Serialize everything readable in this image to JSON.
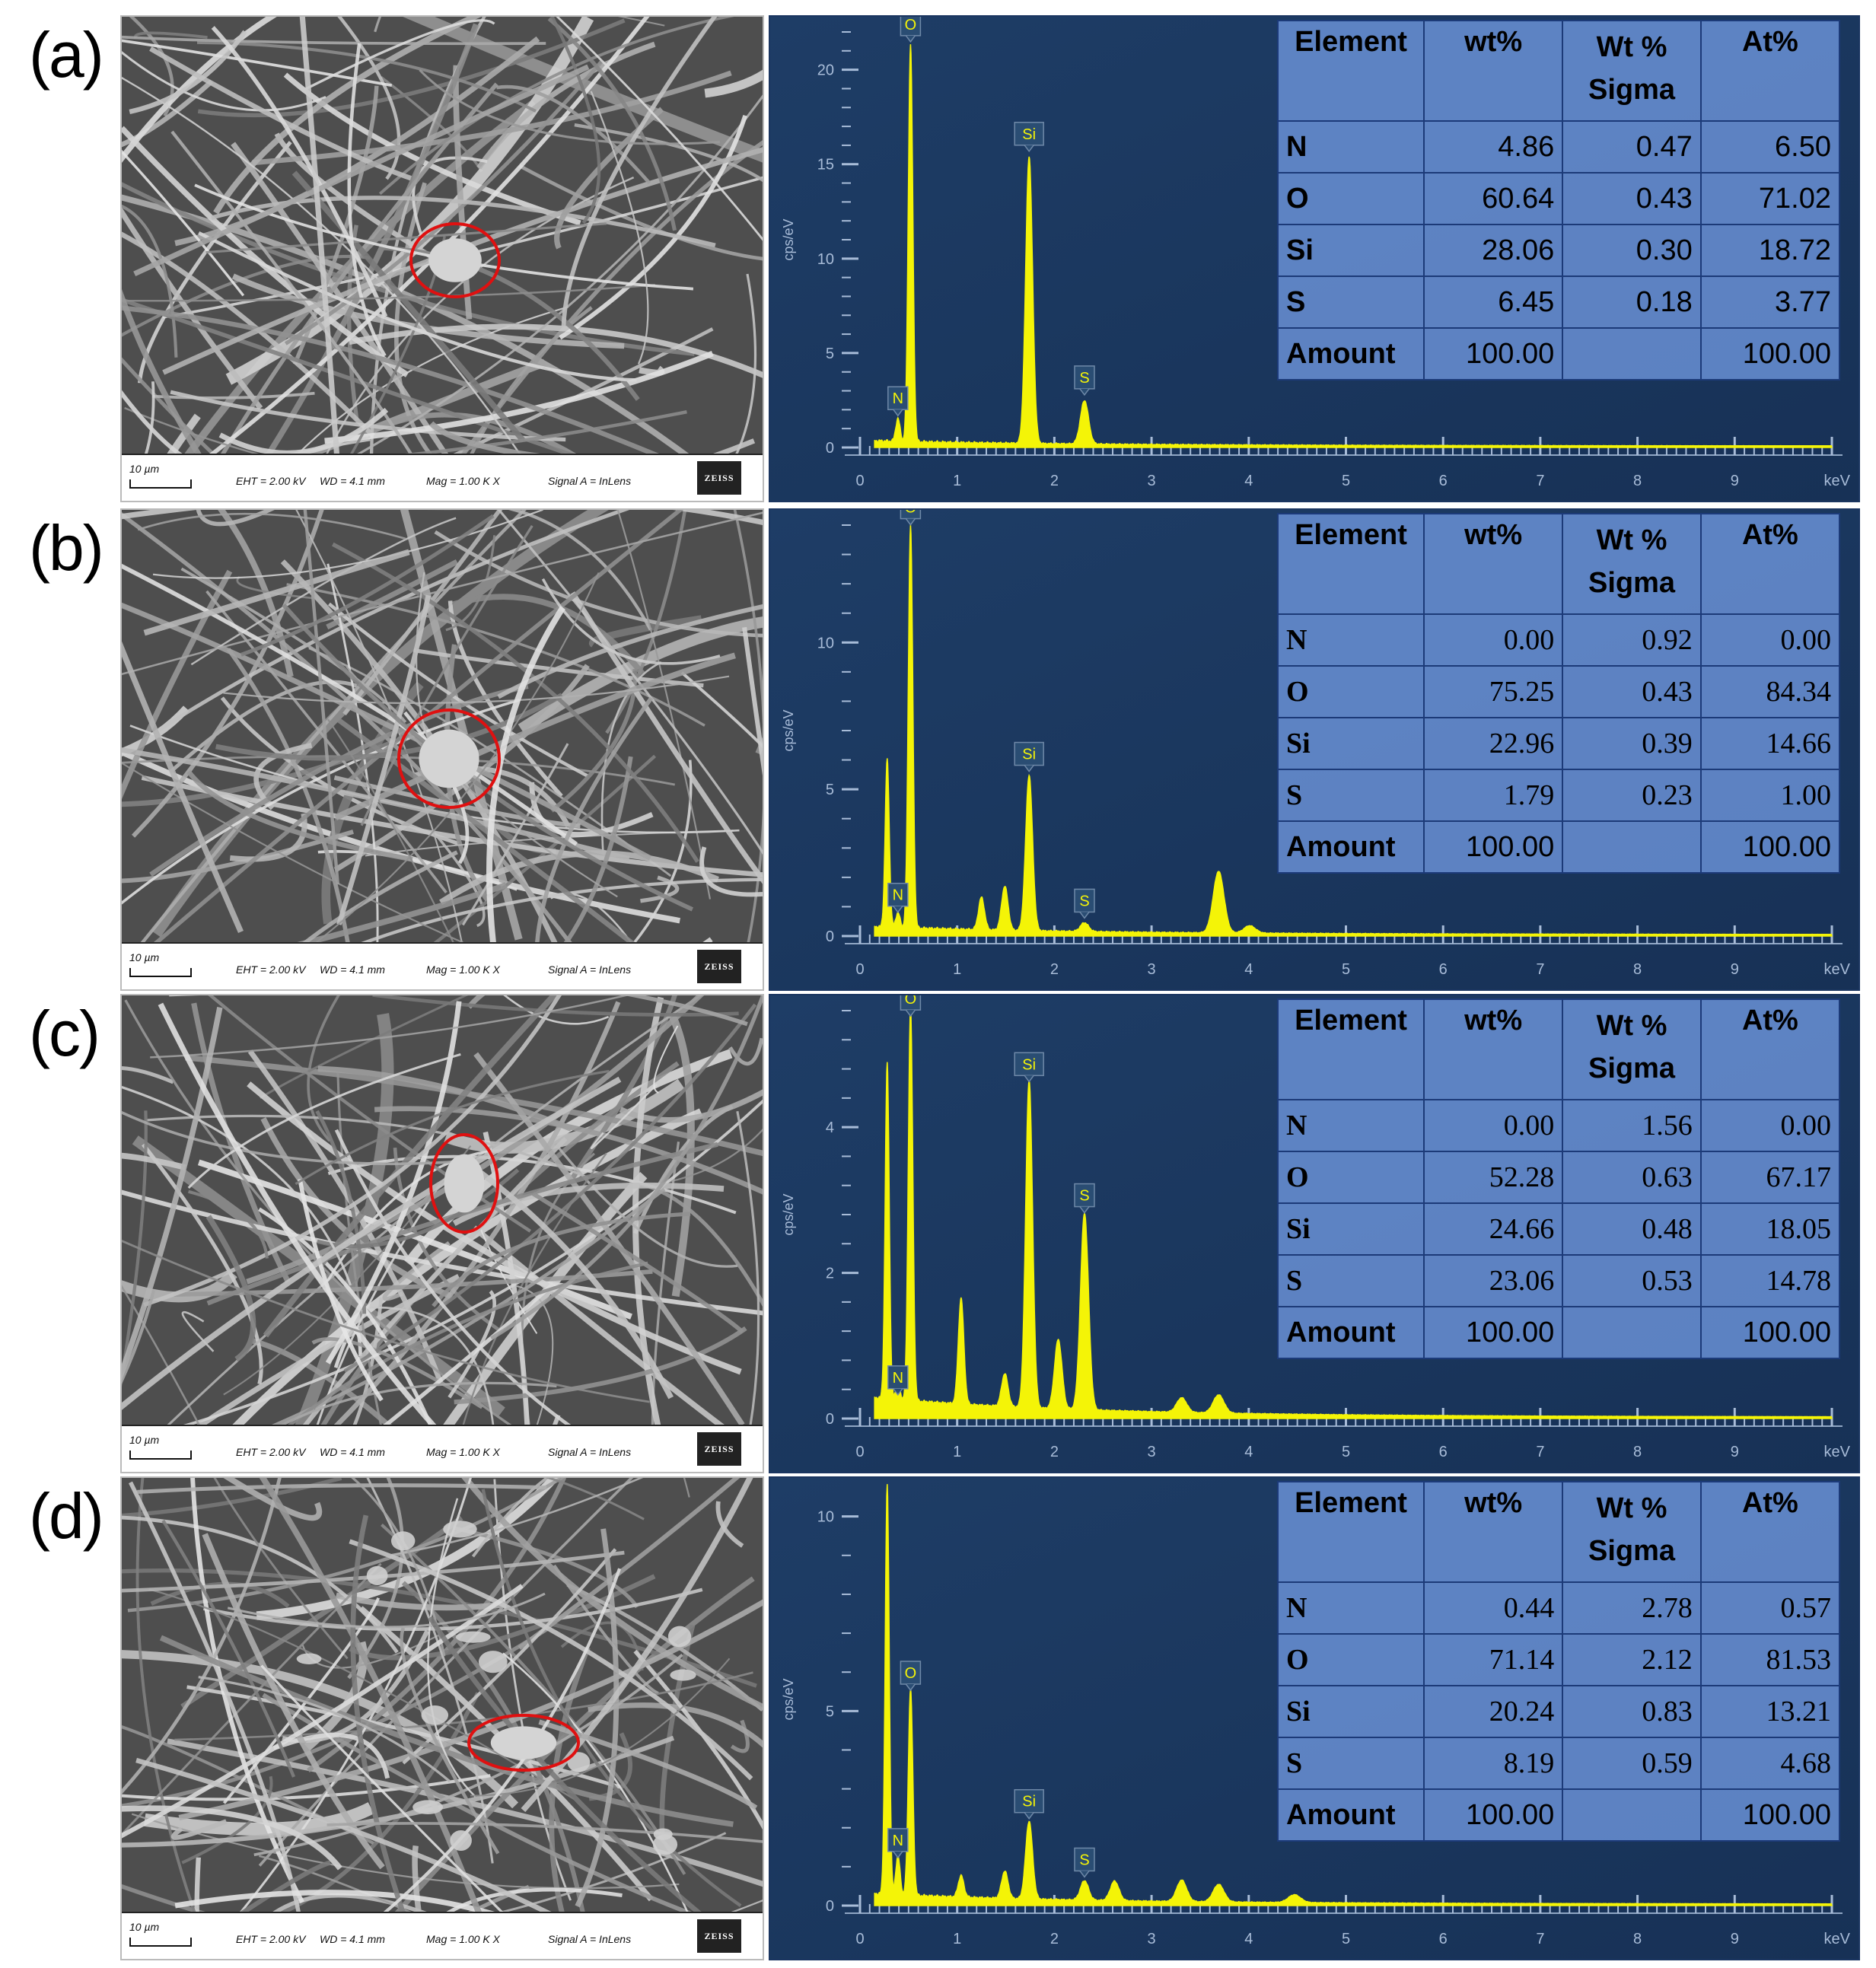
{
  "panels": [
    {
      "label": "(a)",
      "sem": {
        "scale": "10 µm",
        "eht": "EHT = 2.00 kV",
        "wd": "WD = 4.1 mm",
        "mag": "Mag = 1.00 K X",
        "signal": "Signal A = InLens",
        "logo": "ZEISS"
      },
      "chart_data": {
        "type": "line",
        "xlabel": "keV",
        "ylabel": "cps/eV",
        "xlim": [
          0,
          10
        ],
        "ylim": [
          0,
          22
        ],
        "xticks": [
          0,
          1,
          2,
          3,
          4,
          5,
          6,
          7,
          8,
          9
        ],
        "yticks": [
          0,
          5,
          10,
          15,
          20
        ],
        "peaks": [
          {
            "label": "N",
            "x": 0.39,
            "y": 1.2
          },
          {
            "label": "O",
            "x": 0.52,
            "y": 21.0
          },
          {
            "label": "Si",
            "x": 1.74,
            "y": 15.2
          },
          {
            "label": "S",
            "x": 2.31,
            "y": 2.3
          }
        ],
        "extra_peaks": [],
        "table": {
          "headers": [
            "Element",
            "wt%",
            "Wt % Sigma",
            "At%"
          ],
          "rows": [
            [
              "N",
              "4.86",
              "0.47",
              "6.50"
            ],
            [
              "O",
              "60.64",
              "0.43",
              "71.02"
            ],
            [
              "Si",
              "28.06",
              "0.30",
              "18.72"
            ],
            [
              "S",
              "6.45",
              "0.18",
              "3.77"
            ],
            [
              "Amount",
              "100.00",
              "",
              "100.00"
            ]
          ]
        }
      }
    },
    {
      "label": "(b)",
      "sem": {
        "scale": "10 µm",
        "eht": "EHT = 2.00 kV",
        "wd": "WD = 4.1 mm",
        "mag": "Mag = 1.00 K X",
        "signal": "Signal A = InLens",
        "logo": "ZEISS"
      },
      "chart_data": {
        "type": "line",
        "xlabel": "keV",
        "ylabel": "cps/eV",
        "xlim": [
          0,
          10
        ],
        "ylim": [
          0,
          14
        ],
        "xticks": [
          0,
          1,
          2,
          3,
          4,
          5,
          6,
          7,
          8,
          9
        ],
        "yticks": [
          0,
          5,
          10
        ],
        "peaks": [
          {
            "label": "N",
            "x": 0.39,
            "y": 0.5
          },
          {
            "label": "O",
            "x": 0.52,
            "y": 13.7
          },
          {
            "label": "Si",
            "x": 1.74,
            "y": 5.3
          },
          {
            "label": "S",
            "x": 2.31,
            "y": 0.3
          }
        ],
        "extra_peaks": [
          {
            "x": 0.28,
            "y": 5.7
          },
          {
            "x": 1.25,
            "y": 1.1
          },
          {
            "x": 1.49,
            "y": 1.5
          },
          {
            "x": 3.69,
            "y": 2.1
          },
          {
            "x": 4.01,
            "y": 0.25
          }
        ],
        "table": {
          "headers": [
            "Element",
            "wt%",
            "Wt % Sigma",
            "At%"
          ],
          "rows": [
            [
              "N",
              "0.00",
              "0.92",
              "0.00"
            ],
            [
              "O",
              "75.25",
              "0.43",
              "84.34"
            ],
            [
              "Si",
              "22.96",
              "0.39",
              "14.66"
            ],
            [
              "S",
              "1.79",
              "0.23",
              "1.00"
            ],
            [
              "Amount",
              "100.00",
              "",
              "100.00"
            ]
          ]
        }
      }
    },
    {
      "label": "(c)",
      "sem": {
        "scale": "10 µm",
        "eht": "EHT = 2.00 kV",
        "wd": "WD = 4.1 mm",
        "mag": "Mag = 1.00 K X",
        "signal": "Signal A = InLens",
        "logo": "ZEISS"
      },
      "chart_data": {
        "type": "line",
        "xlabel": "keV",
        "ylabel": "cps/eV",
        "xlim": [
          0,
          10
        ],
        "ylim": [
          0,
          5.6
        ],
        "xticks": [
          0,
          1,
          2,
          3,
          4,
          5,
          6,
          7,
          8,
          9
        ],
        "yticks": [
          0,
          2,
          4
        ],
        "peaks": [
          {
            "label": "N",
            "x": 0.39,
            "y": 0.2
          },
          {
            "label": "O",
            "x": 0.52,
            "y": 5.4
          },
          {
            "label": "Si",
            "x": 1.74,
            "y": 4.5
          },
          {
            "label": "S",
            "x": 2.31,
            "y": 2.7
          }
        ],
        "extra_peaks": [
          {
            "x": 0.28,
            "y": 4.6
          },
          {
            "x": 1.04,
            "y": 1.45
          },
          {
            "x": 1.49,
            "y": 0.45
          },
          {
            "x": 2.04,
            "y": 0.95
          },
          {
            "x": 3.31,
            "y": 0.2
          },
          {
            "x": 3.69,
            "y": 0.25
          }
        ],
        "table": {
          "headers": [
            "Element",
            "wt%",
            "Wt % Sigma",
            "At%"
          ],
          "rows": [
            [
              "N",
              "0.00",
              "1.56",
              "0.00"
            ],
            [
              "O",
              "52.28",
              "0.63",
              "67.17"
            ],
            [
              "Si",
              "24.66",
              "0.48",
              "18.05"
            ],
            [
              "S",
              "23.06",
              "0.53",
              "14.78"
            ],
            [
              "Amount",
              "100.00",
              "",
              "100.00"
            ]
          ]
        }
      }
    },
    {
      "label": "(d)",
      "sem": {
        "scale": "10 µm",
        "eht": "EHT = 2.00 kV",
        "wd": "WD = 4.1 mm",
        "mag": "Mag = 1.00 K X",
        "signal": "Signal A = InLens",
        "logo": "ZEISS"
      },
      "chart_data": {
        "type": "line",
        "xlabel": "keV",
        "ylabel": "cps/eV",
        "xlim": [
          0,
          10
        ],
        "ylim": [
          0,
          10.6
        ],
        "xticks": [
          0,
          1,
          2,
          3,
          4,
          5,
          6,
          7,
          8,
          9
        ],
        "yticks": [
          0,
          5,
          10
        ],
        "peaks": [
          {
            "label": "N",
            "x": 0.39,
            "y": 1.0
          },
          {
            "label": "O",
            "x": 0.52,
            "y": 5.3
          },
          {
            "label": "Si",
            "x": 1.74,
            "y": 2.0
          },
          {
            "label": "S",
            "x": 2.31,
            "y": 0.5
          }
        ],
        "extra_peaks": [
          {
            "x": 0.28,
            "y": 10.5
          },
          {
            "x": 1.04,
            "y": 0.55
          },
          {
            "x": 1.49,
            "y": 0.7
          },
          {
            "x": 2.62,
            "y": 0.5
          },
          {
            "x": 3.31,
            "y": 0.55
          },
          {
            "x": 3.69,
            "y": 0.45
          },
          {
            "x": 4.47,
            "y": 0.2
          }
        ],
        "table": {
          "headers": [
            "Element",
            "wt%",
            "Wt % Sigma",
            "At%"
          ],
          "rows": [
            [
              "N",
              "0.44",
              "2.78",
              "0.57"
            ],
            [
              "O",
              "71.14",
              "2.12",
              "81.53"
            ],
            [
              "Si",
              "20.24",
              "0.83",
              "13.21"
            ],
            [
              "S",
              "8.19",
              "0.59",
              "4.68"
            ],
            [
              "Amount",
              "100.00",
              "",
              "100.00"
            ]
          ]
        }
      }
    }
  ]
}
